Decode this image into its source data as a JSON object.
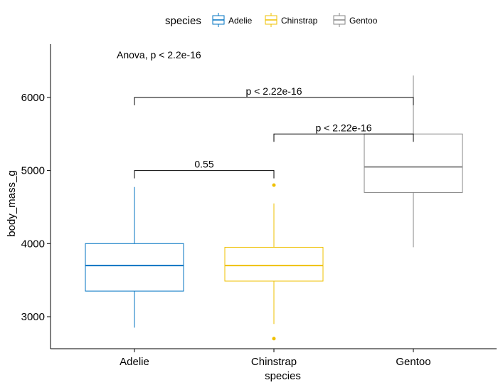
{
  "chart_data": {
    "type": "box",
    "xlabel": "species",
    "ylabel": "body_mass_g",
    "categories": [
      "Adelie",
      "Chinstrap",
      "Gentoo"
    ],
    "ylim": [
      2500,
      6500
    ],
    "yticks": [
      3000,
      4000,
      5000,
      6000
    ],
    "grid": false,
    "legend": {
      "title": "species",
      "position": "top",
      "entries": [
        "Adelie",
        "Chinstrap",
        "Gentoo"
      ]
    },
    "colors": {
      "Adelie": "#0073C2",
      "Chinstrap": "#EFC000",
      "Gentoo": "#868686"
    },
    "series": [
      {
        "category": "Adelie",
        "min": 2850,
        "q1": 3350,
        "median": 3700,
        "q3": 4000,
        "max": 4775,
        "outliers": []
      },
      {
        "category": "Chinstrap",
        "min": 2900,
        "q1": 3487,
        "median": 3700,
        "q3": 3950,
        "max": 4550,
        "outliers": [
          2700,
          4800
        ]
      },
      {
        "category": "Gentoo",
        "min": 3950,
        "q1": 4700,
        "median": 5050,
        "q3": 5500,
        "max": 6300,
        "outliers": []
      }
    ],
    "annotations": {
      "global_test": "Anova, p < 2.2e-16",
      "comparisons": [
        {
          "from": "Adelie",
          "to": "Chinstrap",
          "y": 5000,
          "label": "0.55"
        },
        {
          "from": "Chinstrap",
          "to": "Gentoo",
          "y": 5500,
          "label": "p < 2.22e-16"
        },
        {
          "from": "Adelie",
          "to": "Gentoo",
          "y": 6000,
          "label": "p < 2.22e-16"
        }
      ]
    }
  }
}
